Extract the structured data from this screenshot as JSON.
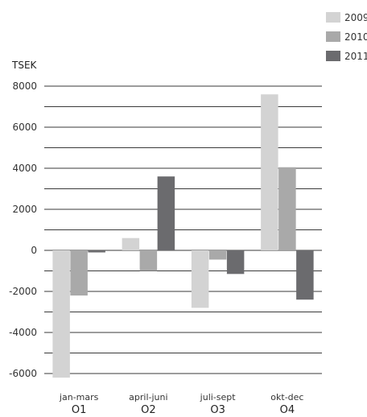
{
  "chart_data": {
    "type": "bar",
    "ylabel": "TSEK",
    "ylim": [
      -6000,
      8000
    ],
    "y_ticks": [
      8000,
      6000,
      4000,
      2000,
      0,
      -2000,
      -4000,
      -6000
    ],
    "gridline_step": 1000,
    "grid": true,
    "legend_position": "top-right",
    "categories": [
      {
        "label": "jan-mars",
        "quarter": "O1"
      },
      {
        "label": "april-juni",
        "quarter": "O2"
      },
      {
        "label": "juli-sept",
        "quarter": "O3"
      },
      {
        "label": "okt-dec",
        "quarter": "O4"
      }
    ],
    "series": [
      {
        "name": "2009",
        "color": "#d3d3d3",
        "values": [
          -6200,
          600,
          -2800,
          7600
        ]
      },
      {
        "name": "2010",
        "color": "#a9a9a9",
        "values": [
          -2200,
          -1000,
          -450,
          4050
        ]
      },
      {
        "name": "2011",
        "color": "#6b6b6e",
        "values": [
          -100,
          3600,
          -1150,
          -2400
        ]
      }
    ]
  }
}
